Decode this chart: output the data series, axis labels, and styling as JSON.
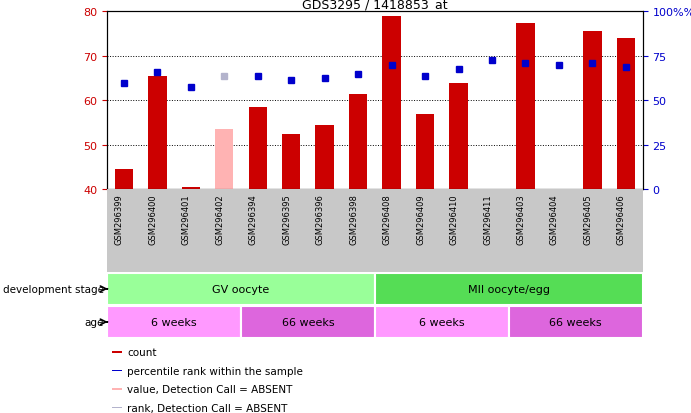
{
  "title": "GDS3295 / 1418853_at",
  "samples": [
    "GSM296399",
    "GSM296400",
    "GSM296401",
    "GSM296402",
    "GSM296394",
    "GSM296395",
    "GSM296396",
    "GSM296398",
    "GSM296408",
    "GSM296409",
    "GSM296410",
    "GSM296411",
    "GSM296403",
    "GSM296404",
    "GSM296405",
    "GSM296406"
  ],
  "count_values": [
    44.5,
    65.5,
    40.5,
    null,
    58.5,
    52.5,
    54.5,
    61.5,
    79.0,
    57.0,
    64.0,
    null,
    77.5,
    null,
    75.5,
    74.0
  ],
  "count_absent": [
    null,
    null,
    null,
    53.5,
    null,
    null,
    null,
    null,
    null,
    null,
    null,
    null,
    null,
    null,
    null,
    null
  ],
  "rank_values": [
    64.0,
    66.5,
    63.0,
    null,
    65.5,
    64.5,
    65.0,
    66.0,
    68.0,
    65.5,
    67.0,
    69.0,
    68.5,
    68.0,
    68.5,
    67.5
  ],
  "rank_absent": [
    null,
    null,
    null,
    65.5,
    null,
    null,
    null,
    null,
    null,
    null,
    null,
    null,
    null,
    null,
    null,
    null
  ],
  "ylim": [
    40,
    80
  ],
  "y2lim": [
    0,
    100
  ],
  "yticks": [
    40,
    50,
    60,
    70,
    80
  ],
  "y2ticks": [
    0,
    25,
    50,
    75,
    100
  ],
  "bar_color": "#cc0000",
  "bar_absent_color": "#ffb3b3",
  "rank_color": "#0000cc",
  "rank_absent_color": "#b3b3cc",
  "bg_color": "#ffffff",
  "xtick_bg_color": "#c8c8c8",
  "grid_color": "#000000",
  "development_stages": [
    {
      "label": "GV oocyte",
      "start": 0,
      "end": 7,
      "color": "#99ff99"
    },
    {
      "label": "MII oocyte/egg",
      "start": 8,
      "end": 15,
      "color": "#55dd55"
    }
  ],
  "age_groups": [
    {
      "label": "6 weeks",
      "start": 0,
      "end": 3,
      "color": "#ff99ff"
    },
    {
      "label": "66 weeks",
      "start": 4,
      "end": 7,
      "color": "#dd66dd"
    },
    {
      "label": "6 weeks",
      "start": 8,
      "end": 11,
      "color": "#ff99ff"
    },
    {
      "label": "66 weeks",
      "start": 12,
      "end": 15,
      "color": "#dd66dd"
    }
  ],
  "legend_items": [
    {
      "label": "count",
      "color": "#cc0000"
    },
    {
      "label": "percentile rank within the sample",
      "color": "#0000cc"
    },
    {
      "label": "value, Detection Call = ABSENT",
      "color": "#ffb3b3"
    },
    {
      "label": "rank, Detection Call = ABSENT",
      "color": "#b3b3cc"
    }
  ],
  "tick_color_left": "#cc0000",
  "tick_color_right": "#0000cc",
  "dev_stage_label": "development stage",
  "age_label": "age"
}
